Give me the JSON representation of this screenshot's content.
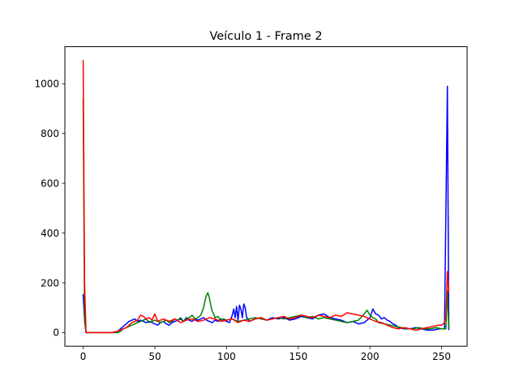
{
  "chart_data": {
    "type": "line",
    "title": "Veículo 1 - Frame 2",
    "xlabel": "",
    "ylabel": "",
    "xlim": [
      -12.75,
      267.75
    ],
    "ylim": [
      -54.7,
      1148.8
    ],
    "xticks": [
      0,
      50,
      100,
      150,
      200,
      250
    ],
    "yticks": [
      0,
      200,
      400,
      600,
      800,
      1000
    ],
    "grid": false,
    "legend": "none",
    "series": [
      {
        "color": "#0000ff",
        "x": [
          0,
          1,
          2,
          5,
          10,
          15,
          20,
          24,
          26,
          28,
          30,
          32,
          34,
          36,
          38,
          40,
          42,
          44,
          46,
          48,
          50,
          52,
          54,
          56,
          58,
          60,
          62,
          64,
          66,
          68,
          70,
          72,
          74,
          76,
          78,
          80,
          82,
          84,
          86,
          88,
          90,
          92,
          94,
          96,
          98,
          100,
          102,
          104,
          105,
          106,
          107,
          108,
          109,
          110,
          111,
          112,
          113,
          114,
          115,
          116,
          118,
          120,
          124,
          128,
          132,
          136,
          140,
          144,
          148,
          152,
          156,
          160,
          164,
          168,
          172,
          176,
          180,
          184,
          188,
          192,
          196,
          200,
          202,
          204,
          206,
          208,
          210,
          212,
          214,
          216,
          218,
          220,
          224,
          228,
          232,
          236,
          240,
          244,
          248,
          252,
          254,
          255
        ],
        "y": [
          155,
          50,
          0,
          0,
          0,
          0,
          0,
          5,
          15,
          25,
          35,
          45,
          50,
          55,
          45,
          50,
          45,
          40,
          45,
          40,
          35,
          30,
          40,
          45,
          35,
          30,
          40,
          45,
          50,
          55,
          45,
          60,
          50,
          45,
          55,
          50,
          55,
          60,
          50,
          45,
          40,
          50,
          45,
          55,
          50,
          45,
          40,
          70,
          95,
          60,
          105,
          50,
          110,
          95,
          60,
          115,
          100,
          60,
          55,
          45,
          50,
          55,
          60,
          50,
          60,
          55,
          60,
          50,
          55,
          65,
          60,
          55,
          70,
          75,
          60,
          55,
          50,
          40,
          45,
          35,
          40,
          60,
          95,
          75,
          70,
          55,
          60,
          50,
          45,
          35,
          30,
          20,
          15,
          15,
          20,
          15,
          10,
          10,
          15,
          15,
          990,
          10
        ]
      },
      {
        "color": "#008000",
        "x": [
          0,
          1,
          2,
          5,
          10,
          15,
          20,
          24,
          26,
          28,
          30,
          32,
          34,
          36,
          38,
          40,
          42,
          44,
          46,
          48,
          50,
          52,
          54,
          56,
          58,
          60,
          62,
          64,
          66,
          68,
          70,
          72,
          74,
          76,
          78,
          80,
          82,
          83,
          84,
          85,
          86,
          87,
          88,
          89,
          90,
          91,
          92,
          94,
          96,
          98,
          100,
          104,
          108,
          112,
          116,
          120,
          124,
          128,
          132,
          136,
          140,
          144,
          148,
          152,
          156,
          160,
          164,
          168,
          172,
          176,
          180,
          184,
          188,
          192,
          196,
          198,
          200,
          202,
          204,
          206,
          210,
          214,
          218,
          222,
          226,
          230,
          234,
          238,
          242,
          246,
          250,
          253,
          254,
          255
        ],
        "y": [
          940,
          50,
          0,
          0,
          0,
          0,
          0,
          0,
          5,
          15,
          20,
          25,
          30,
          35,
          40,
          45,
          50,
          55,
          40,
          45,
          50,
          45,
          40,
          45,
          50,
          40,
          45,
          55,
          50,
          60,
          45,
          55,
          60,
          70,
          55,
          60,
          70,
          85,
          100,
          130,
          150,
          160,
          140,
          110,
          85,
          75,
          60,
          65,
          50,
          55,
          50,
          55,
          45,
          50,
          55,
          60,
          55,
          50,
          55,
          60,
          55,
          60,
          65,
          70,
          60,
          65,
          55,
          60,
          55,
          50,
          45,
          40,
          45,
          50,
          75,
          90,
          70,
          60,
          55,
          40,
          35,
          30,
          25,
          20,
          15,
          15,
          20,
          15,
          15,
          20,
          15,
          15,
          170,
          15
        ]
      },
      {
        "color": "#ff0000",
        "x": [
          0,
          1,
          2,
          5,
          10,
          15,
          20,
          24,
          26,
          28,
          30,
          32,
          34,
          36,
          38,
          40,
          42,
          44,
          46,
          48,
          50,
          52,
          54,
          56,
          58,
          60,
          64,
          68,
          72,
          76,
          80,
          84,
          88,
          92,
          96,
          100,
          104,
          108,
          112,
          116,
          120,
          124,
          128,
          132,
          136,
          140,
          144,
          148,
          152,
          156,
          160,
          164,
          168,
          172,
          176,
          180,
          184,
          188,
          192,
          196,
          200,
          204,
          208,
          212,
          216,
          220,
          224,
          228,
          232,
          236,
          240,
          244,
          248,
          250,
          252,
          253,
          254,
          255
        ],
        "y": [
          1095,
          200,
          0,
          0,
          0,
          0,
          0,
          5,
          10,
          15,
          20,
          30,
          40,
          45,
          50,
          70,
          65,
          55,
          60,
          50,
          75,
          45,
          50,
          55,
          50,
          45,
          55,
          40,
          50,
          55,
          45,
          50,
          60,
          55,
          45,
          50,
          55,
          40,
          50,
          45,
          55,
          60,
          50,
          55,
          60,
          65,
          55,
          60,
          70,
          65,
          60,
          70,
          65,
          60,
          70,
          65,
          80,
          75,
          70,
          65,
          55,
          45,
          40,
          30,
          20,
          15,
          20,
          15,
          10,
          15,
          20,
          25,
          30,
          30,
          40,
          70,
          245,
          160
        ]
      }
    ]
  }
}
